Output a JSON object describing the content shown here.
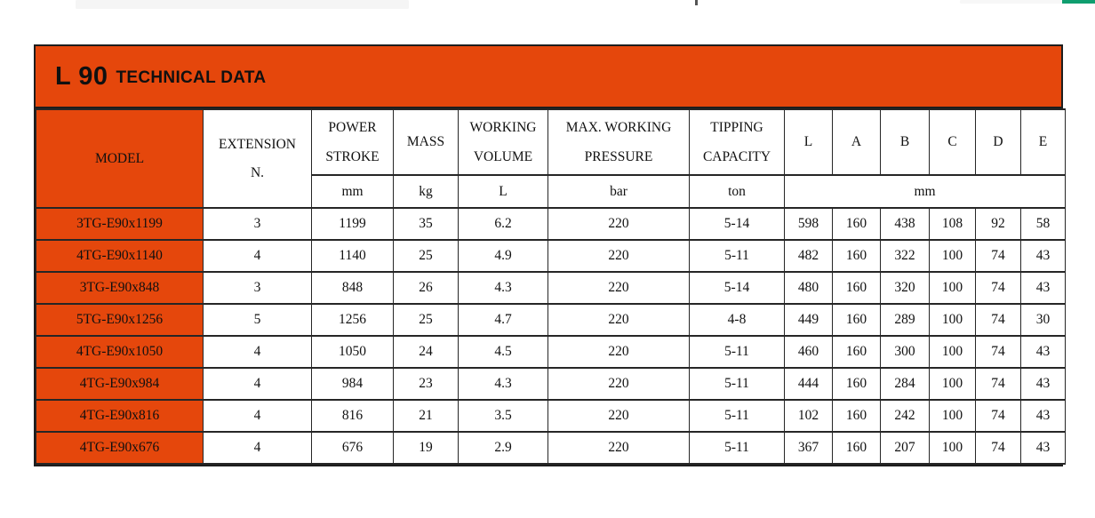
{
  "page": {
    "green_bar_color": "#0f9e6f",
    "accent_color": "#e5470c"
  },
  "datasheet": {
    "title_main": "L 90",
    "title_sub": "TECHNICAL DATA",
    "header": {
      "model": "MODEL",
      "extension": [
        "EXTENSION",
        "N."
      ],
      "power_stroke": [
        "POWER",
        "STROKE"
      ],
      "mass": "MASS",
      "working_volume": [
        "WORKING",
        "VOLUME"
      ],
      "max_working_pressure": [
        "MAX. WORKING",
        "PRESSURE"
      ],
      "tipping_capacity": [
        "TIPPING",
        "CAPACITY"
      ],
      "dimension_columns": [
        "L",
        "A",
        "B",
        "C",
        "D",
        "E"
      ],
      "units": {
        "power_stroke": "mm",
        "mass": "kg",
        "working_volume": "L",
        "max_working_pressure": "bar",
        "tipping_capacity": "ton",
        "dimensions": "mm"
      }
    },
    "rows": [
      {
        "model": "3TG-E90x1199",
        "extension_n": "3",
        "power_stroke_mm": "1199",
        "mass_kg": "35",
        "working_volume_l": "6.2",
        "max_working_pressure_bar": "220",
        "tipping_capacity_ton": "5-14",
        "l": "598",
        "a": "160",
        "b": "438",
        "c": "108",
        "d": "92",
        "e": "58"
      },
      {
        "model": "4TG-E90x1140",
        "extension_n": "4",
        "power_stroke_mm": "1140",
        "mass_kg": "25",
        "working_volume_l": "4.9",
        "max_working_pressure_bar": "220",
        "tipping_capacity_ton": "5-11",
        "l": "482",
        "a": "160",
        "b": "322",
        "c": "100",
        "d": "74",
        "e": "43"
      },
      {
        "model": "3TG-E90x848",
        "extension_n": "3",
        "power_stroke_mm": "848",
        "mass_kg": "26",
        "working_volume_l": "4.3",
        "max_working_pressure_bar": "220",
        "tipping_capacity_ton": "5-14",
        "l": "480",
        "a": "160",
        "b": "320",
        "c": "100",
        "d": "74",
        "e": "43"
      },
      {
        "model": "5TG-E90x1256",
        "extension_n": "5",
        "power_stroke_mm": "1256",
        "mass_kg": "25",
        "working_volume_l": "4.7",
        "max_working_pressure_bar": "220",
        "tipping_capacity_ton": "4-8",
        "l": "449",
        "a": "160",
        "b": "289",
        "c": "100",
        "d": "74",
        "e": "30"
      },
      {
        "model": "4TG-E90x1050",
        "extension_n": "4",
        "power_stroke_mm": "1050",
        "mass_kg": "24",
        "working_volume_l": "4.5",
        "max_working_pressure_bar": "220",
        "tipping_capacity_ton": "5-11",
        "l": "460",
        "a": "160",
        "b": "300",
        "c": "100",
        "d": "74",
        "e": "43"
      },
      {
        "model": "4TG-E90x984",
        "extension_n": "4",
        "power_stroke_mm": "984",
        "mass_kg": "23",
        "working_volume_l": "4.3",
        "max_working_pressure_bar": "220",
        "tipping_capacity_ton": "5-11",
        "l": "444",
        "a": "160",
        "b": "284",
        "c": "100",
        "d": "74",
        "e": "43"
      },
      {
        "model": "4TG-E90x816",
        "extension_n": "4",
        "power_stroke_mm": "816",
        "mass_kg": "21",
        "working_volume_l": "3.5",
        "max_working_pressure_bar": "220",
        "tipping_capacity_ton": "5-11",
        "l": "102",
        "a": "160",
        "b": "242",
        "c": "100",
        "d": "74",
        "e": "43"
      },
      {
        "model": "4TG-E90x676",
        "extension_n": "4",
        "power_stroke_mm": "676",
        "mass_kg": "19",
        "working_volume_l": "2.9",
        "max_working_pressure_bar": "220",
        "tipping_capacity_ton": "5-11",
        "l": "367",
        "a": "160",
        "b": "207",
        "c": "100",
        "d": "74",
        "e": "43"
      }
    ]
  }
}
